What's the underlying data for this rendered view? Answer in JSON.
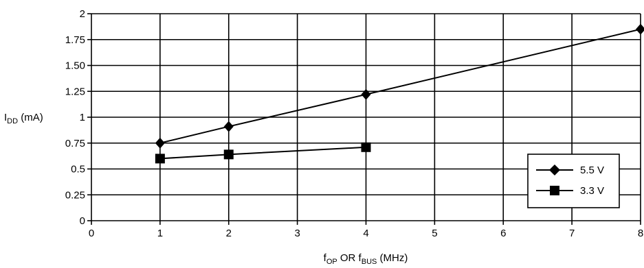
{
  "chart_data": {
    "type": "line",
    "title": "",
    "xlabel": {
      "base": "f",
      "sub1": "OP",
      "mid": " OR f",
      "sub2": "BUS",
      "tail": " (MHz)"
    },
    "ylabel": {
      "base": "I",
      "sub": "DD",
      "tail": " (mA)"
    },
    "xlim": [
      0,
      8
    ],
    "ylim": [
      0,
      2
    ],
    "xticks": [
      0,
      1,
      2,
      3,
      4,
      5,
      6,
      7,
      8
    ],
    "xtick_labels": [
      "0",
      "1",
      "2",
      "3",
      "4",
      "5",
      "6",
      "7",
      "8"
    ],
    "yticks": [
      0,
      0.25,
      0.5,
      0.75,
      1,
      1.25,
      1.5,
      1.75,
      2
    ],
    "ytick_labels": [
      "0",
      "0.25",
      "0.5",
      "0.75",
      "1",
      "1.25",
      "1.50",
      "1.75",
      "2"
    ],
    "grid": true,
    "legend_position": "bottom-right",
    "series": [
      {
        "name": "5.5 V",
        "marker": "diamond",
        "x": [
          1,
          2,
          4,
          8
        ],
        "y": [
          0.75,
          0.91,
          1.22,
          1.85
        ]
      },
      {
        "name": "3.3 V",
        "marker": "square",
        "x": [
          1,
          2,
          4
        ],
        "y": [
          0.6,
          0.64,
          0.71
        ]
      }
    ]
  }
}
